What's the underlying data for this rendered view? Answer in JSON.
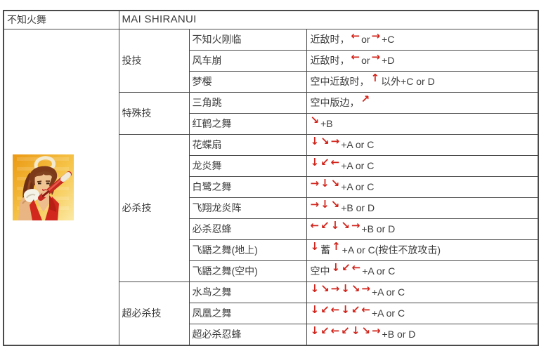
{
  "header": {
    "name_cn": "不知火舞",
    "name_en": "MAI SHIRANUI"
  },
  "colors": {
    "arrow_red": "#d2231a",
    "border": "#4a4a4a",
    "text": "#3c3c3c",
    "portrait_bg_top": "#eb9912",
    "portrait_bg_bottom": "#fbeaa6"
  },
  "sections": [
    {
      "category": "投技",
      "moves": [
        {
          "name": "不知火刚临",
          "command": [
            {
              "t": "近敌时，"
            },
            {
              "a": "←"
            },
            {
              "t": "or"
            },
            {
              "a": "→"
            },
            {
              "t": "+C"
            }
          ]
        },
        {
          "name": "风车崩",
          "command": [
            {
              "t": "近敌时，"
            },
            {
              "a": "←"
            },
            {
              "t": "or"
            },
            {
              "a": "→"
            },
            {
              "t": "+D"
            }
          ]
        },
        {
          "name": "梦樱",
          "command": [
            {
              "t": "空中近敌时，"
            },
            {
              "a": "↑"
            },
            {
              "t": "以外+C or D"
            }
          ]
        }
      ]
    },
    {
      "category": "特殊技",
      "moves": [
        {
          "name": "三角跳",
          "command": [
            {
              "t": "空中版边，"
            },
            {
              "a": "↗"
            }
          ]
        },
        {
          "name": "红鹤之舞",
          "command": [
            {
              "a": "↘"
            },
            {
              "t": "+B"
            }
          ]
        }
      ]
    },
    {
      "category": "必杀技",
      "moves": [
        {
          "name": "花蝶扇",
          "command": [
            {
              "a": "↓"
            },
            {
              "a": "↘"
            },
            {
              "a": "→"
            },
            {
              "t": "+A or C"
            }
          ]
        },
        {
          "name": "龙炎舞",
          "command": [
            {
              "a": "↓"
            },
            {
              "a": "↙"
            },
            {
              "a": "←"
            },
            {
              "t": "+A or C"
            }
          ]
        },
        {
          "name": "白鹭之舞",
          "command": [
            {
              "a": "→"
            },
            {
              "a": "↓"
            },
            {
              "a": "↘"
            },
            {
              "t": "+A or C"
            }
          ]
        },
        {
          "name": "飞翔龙炎阵",
          "command": [
            {
              "a": "→"
            },
            {
              "a": "↓"
            },
            {
              "a": "↘"
            },
            {
              "t": "+B or D"
            }
          ]
        },
        {
          "name": "必杀忍蜂",
          "command": [
            {
              "a": "←"
            },
            {
              "a": "↙"
            },
            {
              "a": "↓"
            },
            {
              "a": "↘"
            },
            {
              "a": "→"
            },
            {
              "t": "+B or D"
            }
          ]
        },
        {
          "name": "飞鼯之舞(地上)",
          "command": [
            {
              "a": "↓"
            },
            {
              "t": "蓄"
            },
            {
              "a": "↑"
            },
            {
              "t": "+A or C(按住不放攻击)"
            }
          ]
        },
        {
          "name": "飞鼯之舞(空中)",
          "command": [
            {
              "t": "空中"
            },
            {
              "a": "↓"
            },
            {
              "a": "↙"
            },
            {
              "a": "←"
            },
            {
              "t": "+A or C"
            }
          ]
        }
      ]
    },
    {
      "category": "超必杀技",
      "moves": [
        {
          "name": "水鸟之舞",
          "command": [
            {
              "a": "↓"
            },
            {
              "a": "↘"
            },
            {
              "a": "→"
            },
            {
              "a": "↓"
            },
            {
              "a": "↘"
            },
            {
              "a": "→"
            },
            {
              "t": "+A or C"
            }
          ]
        },
        {
          "name": "凤凰之舞",
          "command": [
            {
              "a": "↓"
            },
            {
              "a": "↙"
            },
            {
              "a": "←"
            },
            {
              "a": "↓"
            },
            {
              "a": "↙"
            },
            {
              "a": "←"
            },
            {
              "t": "+A or C"
            }
          ]
        },
        {
          "name": "超必杀忍蜂",
          "command": [
            {
              "a": "↓"
            },
            {
              "a": "↙"
            },
            {
              "a": "←"
            },
            {
              "a": "↙"
            },
            {
              "a": "↓"
            },
            {
              "a": "↘"
            },
            {
              "a": "→"
            },
            {
              "t": "+B or D"
            }
          ]
        }
      ]
    }
  ]
}
